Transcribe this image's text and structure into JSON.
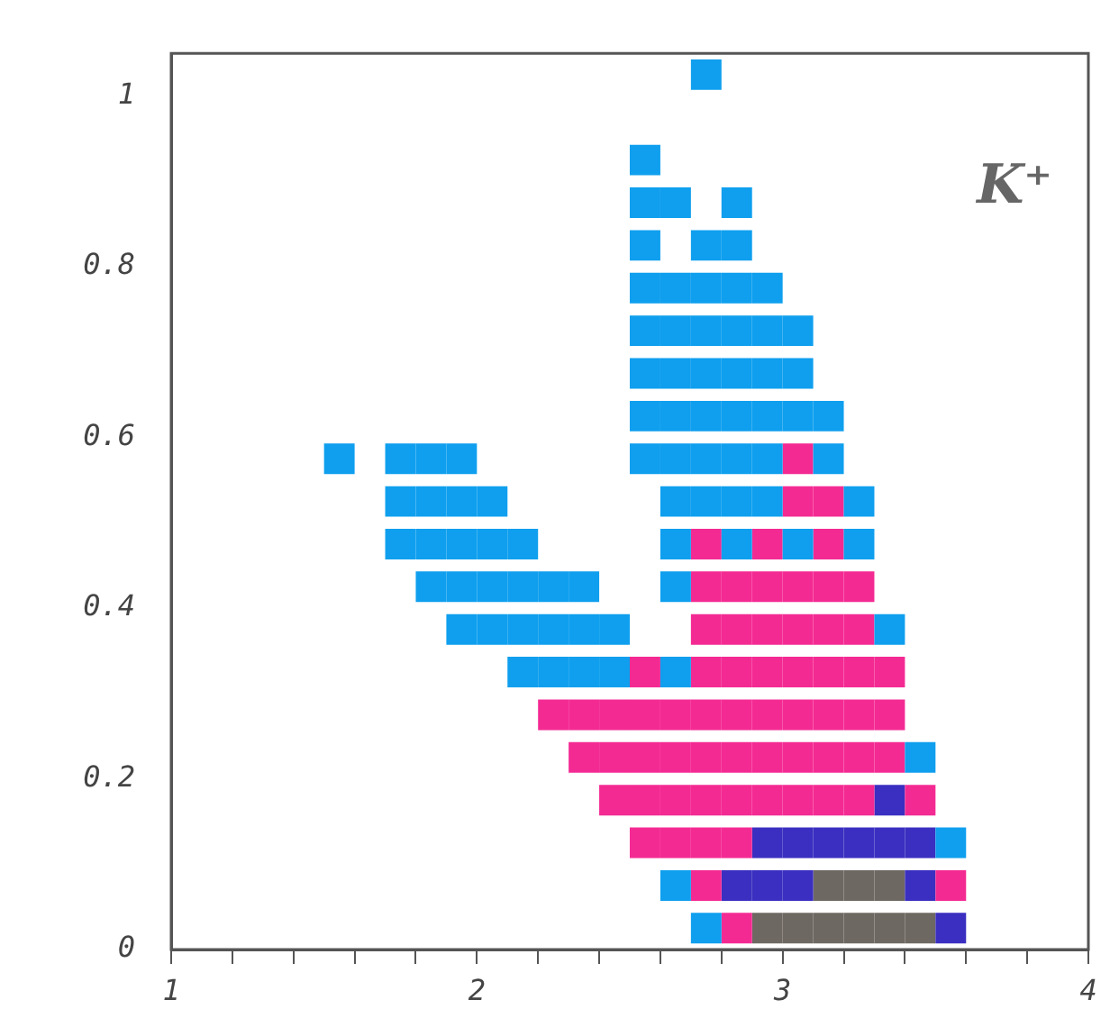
{
  "chart_data": {
    "type": "scatter",
    "marker": "square",
    "xlim": [
      1,
      4
    ],
    "ylim": [
      0,
      1.05
    ],
    "xticks": [
      1,
      {
        "value": 1.2,
        "label": null
      },
      {
        "value": 1.4,
        "label": null
      },
      {
        "value": 1.6,
        "label": null
      },
      {
        "value": 1.8,
        "label": null
      },
      2,
      {
        "value": 2.2,
        "label": null
      },
      {
        "value": 2.4,
        "label": null
      },
      {
        "value": 2.6,
        "label": null
      },
      {
        "value": 2.8,
        "label": null
      },
      3,
      {
        "value": 3.2,
        "label": null
      },
      {
        "value": 3.4,
        "label": null
      },
      {
        "value": 3.6,
        "label": null
      },
      {
        "value": 3.8,
        "label": null
      },
      4
    ],
    "yticks": [
      0,
      0.2,
      0.4,
      0.6,
      0.8,
      1
    ],
    "grid": false,
    "legend": false,
    "annotations": [
      "K⁺"
    ],
    "series": [
      {
        "color": "#0f9fee",
        "x": [
          1.55,
          1.75,
          1.75,
          1.75,
          1.85,
          1.85,
          1.85,
          1.85,
          1.95,
          1.95,
          1.95,
          1.95,
          1.95,
          2.05,
          2.05,
          2.05,
          2.05,
          2.15,
          2.15,
          2.15,
          2.15,
          2.25,
          2.25,
          2.25,
          2.35,
          2.35,
          2.35,
          2.45,
          2.45,
          2.55,
          2.55,
          2.55,
          2.55,
          2.55,
          2.55,
          2.55,
          2.55,
          2.65,
          2.65,
          2.65,
          2.65,
          2.65,
          2.65,
          2.65,
          2.65,
          2.65,
          2.65,
          2.65,
          2.75,
          2.75,
          2.75,
          2.75,
          2.75,
          2.75,
          2.75,
          2.75,
          2.75,
          2.85,
          2.85,
          2.85,
          2.85,
          2.85,
          2.85,
          2.85,
          2.85,
          2.85,
          2.95,
          2.95,
          2.95,
          2.95,
          2.95,
          2.95,
          3.05,
          3.05,
          3.05,
          3.05,
          3.15,
          3.15,
          3.25,
          3.25,
          3.35,
          3.45,
          3.55
        ],
        "values": [
          0.575,
          0.475,
          0.525,
          0.575,
          0.425,
          0.475,
          0.525,
          0.575,
          0.375,
          0.425,
          0.475,
          0.525,
          0.575,
          0.375,
          0.425,
          0.475,
          0.525,
          0.325,
          0.375,
          0.425,
          0.475,
          0.325,
          0.375,
          0.425,
          0.325,
          0.375,
          0.425,
          0.325,
          0.375,
          0.575,
          0.625,
          0.675,
          0.725,
          0.775,
          0.825,
          0.875,
          0.925,
          0.875,
          0.425,
          0.475,
          0.525,
          0.575,
          0.625,
          0.675,
          0.725,
          0.775,
          0.325,
          0.075,
          1.025,
          0.525,
          0.575,
          0.625,
          0.675,
          0.725,
          0.775,
          0.825,
          0.025,
          0.475,
          0.525,
          0.575,
          0.625,
          0.675,
          0.725,
          0.775,
          0.825,
          0.875,
          0.525,
          0.575,
          0.625,
          0.675,
          0.725,
          0.775,
          0.475,
          0.625,
          0.675,
          0.725,
          0.575,
          0.625,
          0.475,
          0.525,
          0.375,
          0.225,
          0.125
        ]
      },
      {
        "color": "#f42a93",
        "x": [
          2.25,
          2.35,
          2.35,
          2.45,
          2.45,
          2.45,
          2.55,
          2.55,
          2.55,
          2.55,
          2.55,
          2.65,
          2.65,
          2.65,
          2.65,
          2.75,
          2.75,
          2.75,
          2.75,
          2.75,
          2.75,
          2.75,
          2.75,
          2.75,
          2.85,
          2.85,
          2.85,
          2.85,
          2.85,
          2.85,
          2.85,
          2.85,
          2.95,
          2.95,
          2.95,
          2.95,
          2.95,
          2.95,
          2.95,
          3.05,
          3.05,
          3.05,
          3.05,
          3.05,
          3.05,
          3.05,
          3.05,
          3.15,
          3.15,
          3.15,
          3.15,
          3.15,
          3.15,
          3.15,
          3.15,
          3.25,
          3.25,
          3.25,
          3.25,
          3.25,
          3.25,
          3.35,
          3.35,
          3.35,
          3.45,
          3.55
        ],
        "values": [
          0.275,
          0.225,
          0.275,
          0.175,
          0.225,
          0.275,
          0.125,
          0.175,
          0.225,
          0.275,
          0.325,
          0.125,
          0.175,
          0.225,
          0.275,
          0.075,
          0.125,
          0.175,
          0.225,
          0.275,
          0.325,
          0.375,
          0.425,
          0.475,
          0.025,
          0.125,
          0.175,
          0.225,
          0.275,
          0.325,
          0.375,
          0.425,
          0.175,
          0.225,
          0.275,
          0.325,
          0.375,
          0.425,
          0.475,
          0.175,
          0.225,
          0.275,
          0.325,
          0.375,
          0.425,
          0.525,
          0.575,
          0.175,
          0.225,
          0.275,
          0.325,
          0.375,
          0.425,
          0.475,
          0.525,
          0.175,
          0.225,
          0.275,
          0.325,
          0.375,
          0.425,
          0.225,
          0.275,
          0.325,
          0.175,
          0.075
        ]
      },
      {
        "color": "#3a2fc0",
        "x": [
          2.85,
          2.95,
          2.95,
          3.05,
          3.05,
          3.15,
          3.25,
          3.35,
          3.35,
          3.45,
          3.45,
          3.55
        ],
        "values": [
          0.075,
          0.075,
          0.125,
          0.075,
          0.125,
          0.125,
          0.125,
          0.125,
          0.175,
          0.075,
          0.125,
          0.025
        ]
      },
      {
        "color": "#6e6862",
        "x": [
          2.95,
          3.05,
          3.15,
          3.15,
          3.25,
          3.25,
          3.35,
          3.35,
          3.45
        ],
        "values": [
          0.025,
          0.025,
          0.025,
          0.075,
          0.025,
          0.075,
          0.025,
          0.075,
          0.025
        ]
      }
    ]
  }
}
